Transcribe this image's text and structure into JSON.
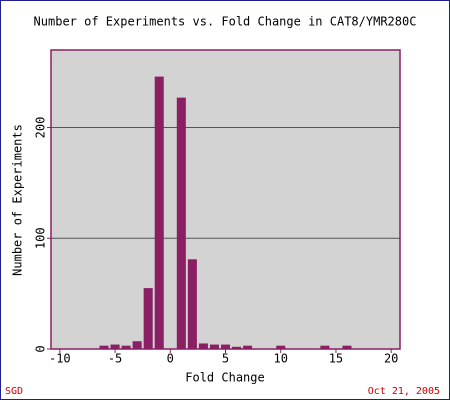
{
  "chart_data": {
    "type": "histogram",
    "title": "Number of Experiments vs. Fold Change in CAT8/YMR280C",
    "x_label": "Fold Change",
    "y_label": "Number of Experiments",
    "bins": [
      -6.5,
      -5.5,
      -4.5,
      -3.5,
      -2.5,
      -1.5,
      -0.5,
      0.5,
      1.5,
      2.5,
      3.5,
      4.5,
      5.5,
      6.5,
      7.5,
      8.5,
      9.5,
      10.5,
      11.5,
      12.5,
      13.5,
      14.5,
      15.5,
      16.5
    ],
    "values": [
      3,
      4,
      3,
      7,
      55,
      246,
      0,
      227,
      81,
      5,
      4,
      4,
      2,
      3,
      0,
      0,
      3,
      0,
      0,
      0,
      3,
      0,
      3
    ],
    "color": "#8b1f63",
    "xlim": [
      -10.8,
      20.8
    ],
    "xticks": [
      -10,
      -5,
      0,
      5,
      10,
      15,
      20
    ],
    "ylim": [
      0,
      270
    ],
    "yticks": [
      0,
      100,
      200
    ],
    "grid": true,
    "footer_left": "SGD",
    "footer_right": "Oct 21, 2005"
  }
}
